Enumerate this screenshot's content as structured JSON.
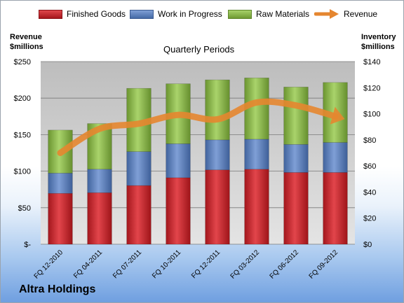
{
  "company": "Altra Holdings",
  "chart_data": {
    "type": "bar",
    "stacked": true,
    "title": "Quarterly Periods",
    "ylabel_left": "Revenue\n$millions",
    "ylabel_right": "Inventory\n$millions",
    "categories": [
      "FQ 12-2010",
      "FQ 04-2011",
      "FQ 07-2011",
      "FQ 10-2011",
      "FQ 12-2011",
      "FQ 03-2012",
      "FQ 06-2012",
      "FQ 09-2012"
    ],
    "left_ticks": [
      "$-",
      "$50",
      "$100",
      "$150",
      "$200",
      "$250"
    ],
    "right_ticks": [
      "$0",
      "$20",
      "$40",
      "$60",
      "$80",
      "$100",
      "$120",
      "$140"
    ],
    "ylim_left": [
      0,
      250
    ],
    "ylim_right": [
      0,
      140
    ],
    "grid": true,
    "legend_position": "top",
    "series": [
      {
        "name": "Finished Goods",
        "type": "bar",
        "axis": "right",
        "color": "#c0282e",
        "values": [
          39,
          39.5,
          45,
          51,
          57,
          57.5,
          55,
          55
        ]
      },
      {
        "name": "Work in Progress",
        "type": "bar",
        "axis": "right",
        "color": "#5b7fbc",
        "values": [
          15.5,
          18,
          26,
          26,
          23,
          23,
          21.5,
          23
        ]
      },
      {
        "name": "Raw Materials",
        "type": "bar",
        "axis": "right",
        "color": "#8db94a",
        "values": [
          33,
          35,
          48.5,
          46,
          46,
          47,
          44,
          46
        ]
      },
      {
        "name": "Revenue",
        "type": "line",
        "axis": "left",
        "color": "#e5862f",
        "values": [
          125,
          158,
          165,
          177,
          171,
          194,
          190,
          175
        ]
      }
    ]
  }
}
